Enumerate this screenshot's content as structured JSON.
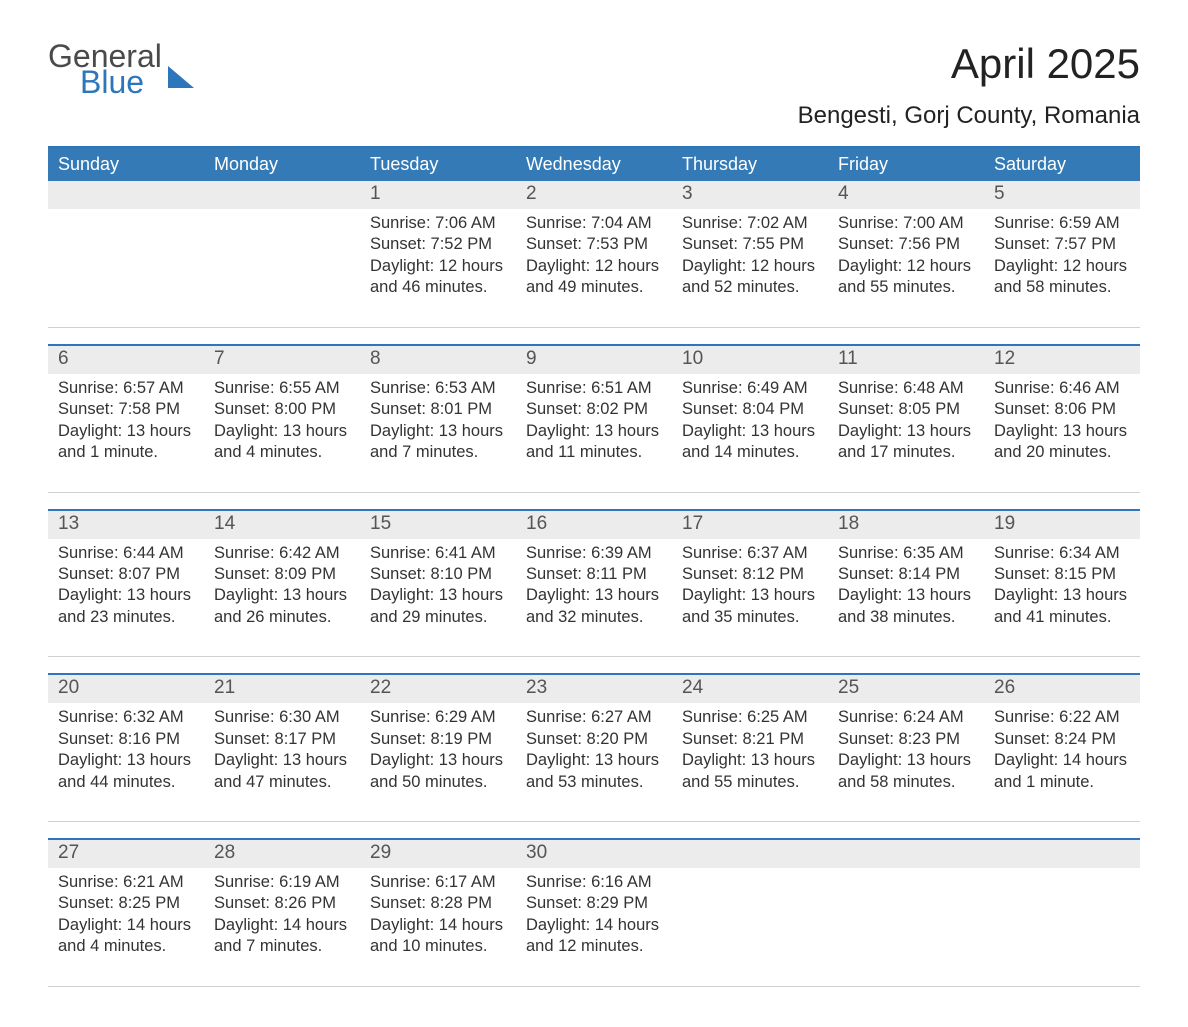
{
  "brand": {
    "general": "General",
    "blue": "Blue"
  },
  "title": "April 2025",
  "location": "Bengesti, Gorj County, Romania",
  "colors": {
    "accent": "#2d76bb",
    "header_bg": "#337ab7",
    "header_text": "#ffffff",
    "daynum_bg": "#ececec",
    "text": "#333333",
    "background": "#ffffff"
  },
  "day_names": [
    "Sunday",
    "Monday",
    "Tuesday",
    "Wednesday",
    "Thursday",
    "Friday",
    "Saturday"
  ],
  "labels": {
    "sunrise": "Sunrise: ",
    "sunset": "Sunset: ",
    "daylight": "Daylight: "
  },
  "weeks": [
    [
      {
        "n": "",
        "sunrise": "",
        "sunset": "",
        "daylight": ""
      },
      {
        "n": "",
        "sunrise": "",
        "sunset": "",
        "daylight": ""
      },
      {
        "n": "1",
        "sunrise": "7:06 AM",
        "sunset": "7:52 PM",
        "daylight": "12 hours and 46 minutes."
      },
      {
        "n": "2",
        "sunrise": "7:04 AM",
        "sunset": "7:53 PM",
        "daylight": "12 hours and 49 minutes."
      },
      {
        "n": "3",
        "sunrise": "7:02 AM",
        "sunset": "7:55 PM",
        "daylight": "12 hours and 52 minutes."
      },
      {
        "n": "4",
        "sunrise": "7:00 AM",
        "sunset": "7:56 PM",
        "daylight": "12 hours and 55 minutes."
      },
      {
        "n": "5",
        "sunrise": "6:59 AM",
        "sunset": "7:57 PM",
        "daylight": "12 hours and 58 minutes."
      }
    ],
    [
      {
        "n": "6",
        "sunrise": "6:57 AM",
        "sunset": "7:58 PM",
        "daylight": "13 hours and 1 minute."
      },
      {
        "n": "7",
        "sunrise": "6:55 AM",
        "sunset": "8:00 PM",
        "daylight": "13 hours and 4 minutes."
      },
      {
        "n": "8",
        "sunrise": "6:53 AM",
        "sunset": "8:01 PM",
        "daylight": "13 hours and 7 minutes."
      },
      {
        "n": "9",
        "sunrise": "6:51 AM",
        "sunset": "8:02 PM",
        "daylight": "13 hours and 11 minutes."
      },
      {
        "n": "10",
        "sunrise": "6:49 AM",
        "sunset": "8:04 PM",
        "daylight": "13 hours and 14 minutes."
      },
      {
        "n": "11",
        "sunrise": "6:48 AM",
        "sunset": "8:05 PM",
        "daylight": "13 hours and 17 minutes."
      },
      {
        "n": "12",
        "sunrise": "6:46 AM",
        "sunset": "8:06 PM",
        "daylight": "13 hours and 20 minutes."
      }
    ],
    [
      {
        "n": "13",
        "sunrise": "6:44 AM",
        "sunset": "8:07 PM",
        "daylight": "13 hours and 23 minutes."
      },
      {
        "n": "14",
        "sunrise": "6:42 AM",
        "sunset": "8:09 PM",
        "daylight": "13 hours and 26 minutes."
      },
      {
        "n": "15",
        "sunrise": "6:41 AM",
        "sunset": "8:10 PM",
        "daylight": "13 hours and 29 minutes."
      },
      {
        "n": "16",
        "sunrise": "6:39 AM",
        "sunset": "8:11 PM",
        "daylight": "13 hours and 32 minutes."
      },
      {
        "n": "17",
        "sunrise": "6:37 AM",
        "sunset": "8:12 PM",
        "daylight": "13 hours and 35 minutes."
      },
      {
        "n": "18",
        "sunrise": "6:35 AM",
        "sunset": "8:14 PM",
        "daylight": "13 hours and 38 minutes."
      },
      {
        "n": "19",
        "sunrise": "6:34 AM",
        "sunset": "8:15 PM",
        "daylight": "13 hours and 41 minutes."
      }
    ],
    [
      {
        "n": "20",
        "sunrise": "6:32 AM",
        "sunset": "8:16 PM",
        "daylight": "13 hours and 44 minutes."
      },
      {
        "n": "21",
        "sunrise": "6:30 AM",
        "sunset": "8:17 PM",
        "daylight": "13 hours and 47 minutes."
      },
      {
        "n": "22",
        "sunrise": "6:29 AM",
        "sunset": "8:19 PM",
        "daylight": "13 hours and 50 minutes."
      },
      {
        "n": "23",
        "sunrise": "6:27 AM",
        "sunset": "8:20 PM",
        "daylight": "13 hours and 53 minutes."
      },
      {
        "n": "24",
        "sunrise": "6:25 AM",
        "sunset": "8:21 PM",
        "daylight": "13 hours and 55 minutes."
      },
      {
        "n": "25",
        "sunrise": "6:24 AM",
        "sunset": "8:23 PM",
        "daylight": "13 hours and 58 minutes."
      },
      {
        "n": "26",
        "sunrise": "6:22 AM",
        "sunset": "8:24 PM",
        "daylight": "14 hours and 1 minute."
      }
    ],
    [
      {
        "n": "27",
        "sunrise": "6:21 AM",
        "sunset": "8:25 PM",
        "daylight": "14 hours and 4 minutes."
      },
      {
        "n": "28",
        "sunrise": "6:19 AM",
        "sunset": "8:26 PM",
        "daylight": "14 hours and 7 minutes."
      },
      {
        "n": "29",
        "sunrise": "6:17 AM",
        "sunset": "8:28 PM",
        "daylight": "14 hours and 10 minutes."
      },
      {
        "n": "30",
        "sunrise": "6:16 AM",
        "sunset": "8:29 PM",
        "daylight": "14 hours and 12 minutes."
      },
      {
        "n": "",
        "sunrise": "",
        "sunset": "",
        "daylight": ""
      },
      {
        "n": "",
        "sunrise": "",
        "sunset": "",
        "daylight": ""
      },
      {
        "n": "",
        "sunrise": "",
        "sunset": "",
        "daylight": ""
      }
    ]
  ]
}
